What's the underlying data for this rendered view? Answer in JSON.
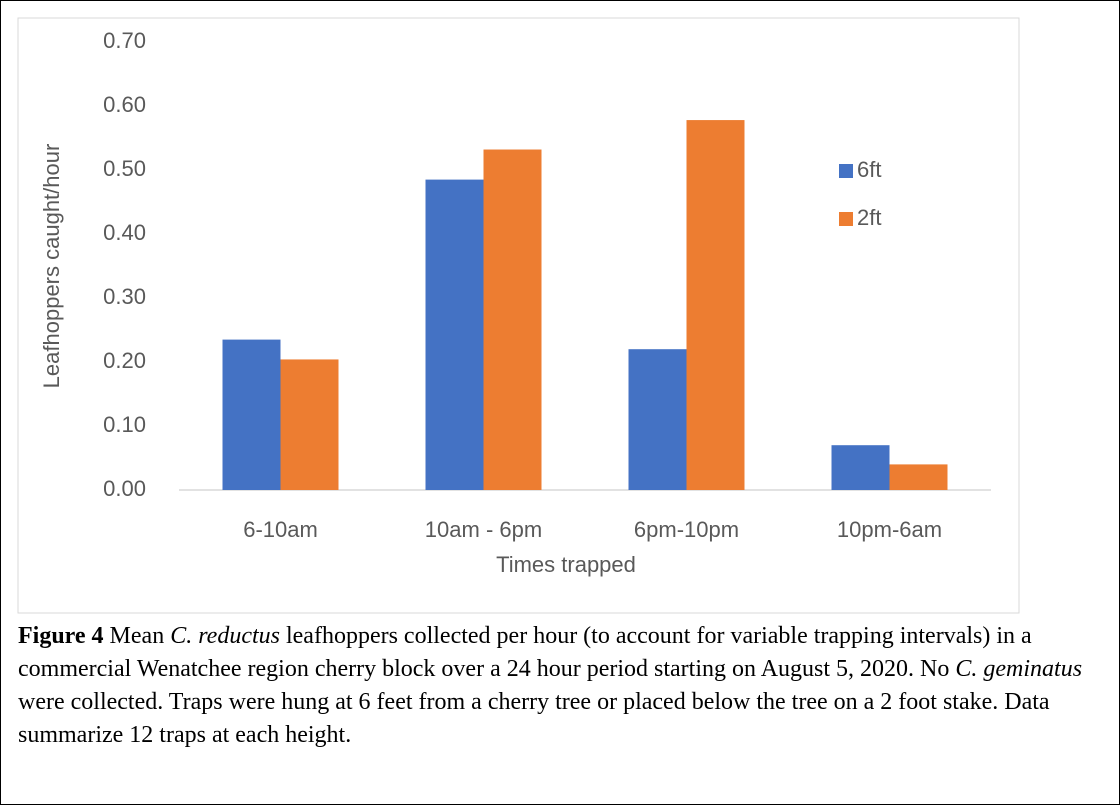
{
  "chart_data": {
    "type": "bar",
    "categories": [
      "6-10am",
      "10am - 6pm",
      "6pm-10pm",
      "10pm-6am"
    ],
    "series": [
      {
        "name": "6ft",
        "color": "#4472c4",
        "values": [
          0.235,
          0.485,
          0.22,
          0.07
        ]
      },
      {
        "name": "2ft",
        "color": "#ed7d31",
        "values": [
          0.204,
          0.532,
          0.578,
          0.04
        ]
      }
    ],
    "ylabel": "Leafhoppers caught/hour",
    "xlabel": "Times trapped",
    "ylim": [
      0,
      0.7
    ],
    "yticks": [
      {
        "value": 0,
        "label": "0.00"
      },
      {
        "value": 0.1,
        "label": "0.10"
      },
      {
        "value": 0.2,
        "label": "0.20"
      },
      {
        "value": 0.3,
        "label": "0.30"
      },
      {
        "value": 0.4,
        "label": "0.40"
      },
      {
        "value": 0.5,
        "label": "0.50"
      },
      {
        "value": 0.6,
        "label": "0.60"
      },
      {
        "value": 0.7,
        "label": "0.70"
      }
    ],
    "grid": false,
    "legend": "right"
  },
  "caption": [
    {
      "text": "Figure 4",
      "style": "bold"
    },
    {
      "text": " Mean "
    },
    {
      "text": "C. reductus",
      "style": "italic"
    },
    {
      "text": " leafhoppers collected per hour (to account for variable trapping intervals) in a commercial Wenatchee region cherry block over a 24 hour period starting on August 5, 2020. No "
    },
    {
      "text": "C. geminatus",
      "style": "italic"
    },
    {
      "text": " were collected. Traps were hung at 6 feet from a cherry tree or placed below the tree on a 2 foot stake. Data summarize 12 traps at each height."
    }
  ]
}
